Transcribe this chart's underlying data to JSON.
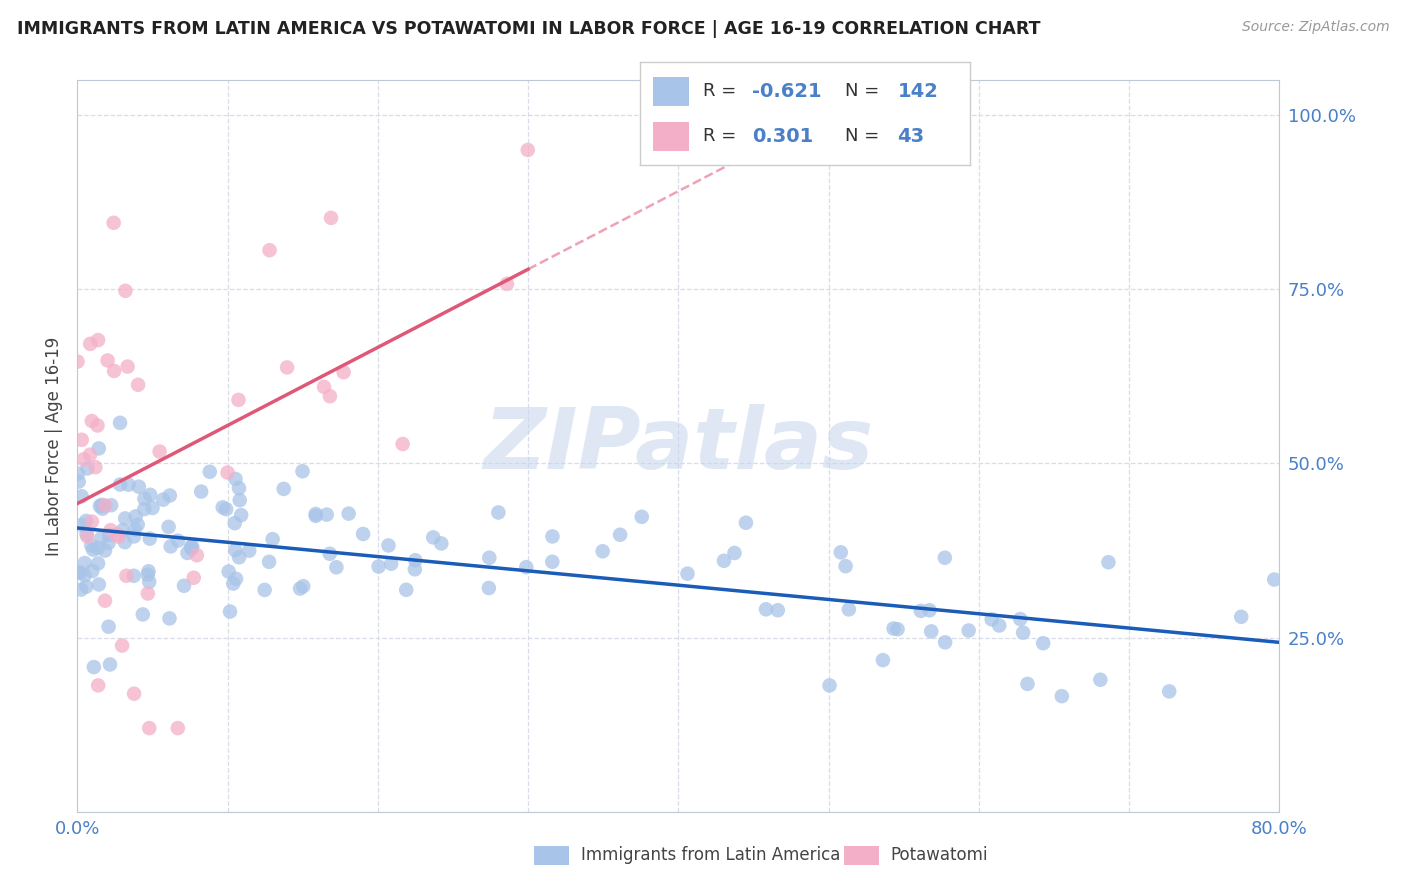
{
  "title": "IMMIGRANTS FROM LATIN AMERICA VS POTAWATOMI IN LABOR FORCE | AGE 16-19 CORRELATION CHART",
  "source": "Source: ZipAtlas.com",
  "ylabel": "In Labor Force | Age 16-19",
  "x_min": 0.0,
  "x_max": 0.8,
  "y_min": 0.0,
  "y_max": 1.05,
  "x_tick_positions": [
    0.0,
    0.1,
    0.2,
    0.3,
    0.4,
    0.5,
    0.6,
    0.7,
    0.8
  ],
  "x_tick_labels": [
    "0.0%",
    "",
    "",
    "",
    "",
    "",
    "",
    "",
    "80.0%"
  ],
  "y_tick_positions": [
    0.0,
    0.25,
    0.5,
    0.75,
    1.0
  ],
  "y_tick_labels": [
    "",
    "25.0%",
    "50.0%",
    "75.0%",
    "100.0%"
  ],
  "blue_color": "#a8c4e8",
  "pink_color": "#f4afc8",
  "blue_line_color": "#1a5cb8",
  "pink_line_color": "#e05878",
  "text_color_blue": "#4a80c8",
  "label_color": "#444444",
  "grid_color": "#d8dde8",
  "R_blue": "-0.621",
  "N_blue": "142",
  "R_pink": "0.301",
  "N_pink": "43",
  "watermark": "ZIPatlas",
  "legend_label_blue": "Immigrants from Latin America",
  "legend_label_pink": "Potawatomi",
  "seed": 99
}
